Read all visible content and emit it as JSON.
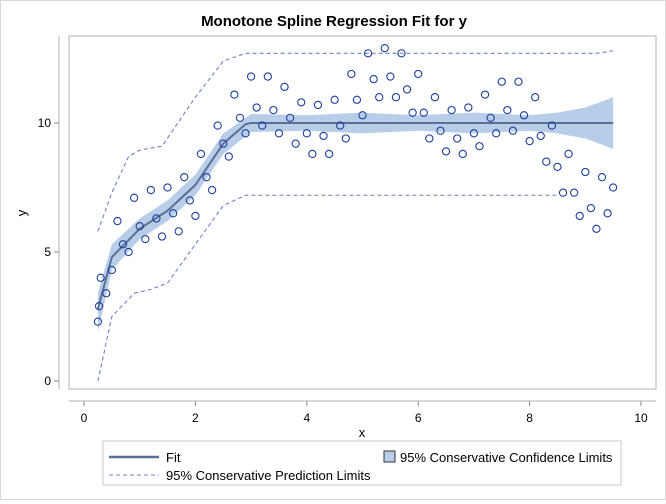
{
  "chart_data": {
    "type": "scatter",
    "title": "Monotone Spline Regression Fit for y",
    "xlabel": "x",
    "ylabel": "y",
    "xlim": [
      -0.3,
      10.3
    ],
    "ylim": [
      -0.3,
      13.3
    ],
    "xticks": [
      0,
      2,
      4,
      6,
      8,
      10
    ],
    "yticks": [
      0,
      5,
      10
    ],
    "grid": false,
    "legend_placement": "bottom",
    "colors": {
      "points": "#1f3f9f",
      "fit": "#5a6f94",
      "confidence": "#b8cde8",
      "prediction": "#6d82c6"
    },
    "points": {
      "x": [
        0.25,
        0.27,
        0.3,
        0.4,
        0.5,
        0.6,
        0.7,
        0.8,
        0.9,
        1.0,
        1.1,
        1.2,
        1.3,
        1.4,
        1.5,
        1.6,
        1.7,
        1.8,
        1.9,
        2.0,
        2.1,
        2.2,
        2.3,
        2.4,
        2.5,
        2.6,
        2.7,
        2.8,
        2.9,
        3.0,
        3.1,
        3.2,
        3.3,
        3.4,
        3.5,
        3.6,
        3.7,
        3.8,
        3.9,
        4.0,
        4.1,
        4.2,
        4.3,
        4.4,
        4.5,
        4.6,
        4.7,
        4.8,
        4.9,
        5.0,
        5.1,
        5.2,
        5.3,
        5.4,
        5.5,
        5.6,
        5.7,
        5.8,
        5.9,
        6.0,
        6.1,
        6.2,
        6.3,
        6.4,
        6.5,
        6.6,
        6.7,
        6.8,
        6.9,
        7.0,
        7.1,
        7.2,
        7.3,
        7.4,
        7.5,
        7.6,
        7.7,
        7.8,
        7.9,
        8.0,
        8.1,
        8.2,
        8.3,
        8.4,
        8.5,
        8.6,
        8.7,
        8.8,
        8.9,
        9.0,
        9.1,
        9.2,
        9.3,
        9.4,
        9.5
      ],
      "y": [
        2.3,
        2.9,
        4.0,
        3.4,
        4.3,
        6.2,
        5.3,
        5.0,
        7.1,
        6.0,
        5.5,
        7.4,
        6.3,
        5.6,
        7.5,
        6.5,
        5.8,
        7.9,
        7.0,
        6.4,
        8.8,
        7.9,
        7.4,
        9.9,
        9.2,
        8.7,
        11.1,
        10.2,
        9.6,
        11.8,
        10.6,
        9.9,
        11.8,
        10.5,
        9.6,
        11.4,
        10.2,
        9.2,
        10.8,
        9.6,
        8.8,
        10.7,
        9.5,
        8.8,
        10.9,
        9.9,
        9.4,
        11.9,
        10.9,
        10.3,
        12.7,
        11.7,
        11.0,
        12.9,
        11.8,
        11.0,
        12.7,
        11.3,
        10.4,
        11.9,
        10.4,
        9.4,
        11.0,
        9.7,
        8.9,
        10.5,
        9.4,
        8.8,
        10.6,
        9.6,
        9.1,
        11.1,
        10.2,
        9.6,
        11.6,
        10.5,
        9.7,
        11.6,
        10.3,
        9.3,
        11.0,
        9.5,
        8.5,
        9.9,
        8.3,
        7.3,
        8.8,
        7.3,
        6.4,
        8.1,
        6.7,
        5.9,
        7.9,
        6.5,
        7.5
      ]
    },
    "series": [
      {
        "name": "Fit",
        "x": [
          0.25,
          0.5,
          1.0,
          1.5,
          2.0,
          2.5,
          2.9,
          3.0,
          9.5
        ],
        "y": [
          2.8,
          4.8,
          5.9,
          6.6,
          7.6,
          9.2,
          9.95,
          10,
          10
        ]
      },
      {
        "name": "95% Conservative Confidence Limits",
        "x": [
          0.25,
          0.5,
          1.0,
          1.5,
          2.0,
          2.5,
          3.0,
          4.0,
          5.0,
          6.0,
          7.0,
          8.0,
          8.5,
          9.0,
          9.5
        ],
        "lower": [
          1.9,
          4.3,
          5.5,
          6.2,
          7.2,
          8.8,
          9.65,
          9.7,
          9.6,
          9.7,
          9.6,
          9.7,
          9.6,
          9.4,
          9.0
        ],
        "upper": [
          3.4,
          5.3,
          6.3,
          7.0,
          8.0,
          9.6,
          10.35,
          10.3,
          10.4,
          10.3,
          10.4,
          10.3,
          10.4,
          10.6,
          11.0
        ]
      },
      {
        "name": "95% Conservative Prediction Limits",
        "upper": {
          "x": [
            0.25,
            0.5,
            0.8,
            1.0,
            1.4,
            2.0,
            2.5,
            2.9,
            9.2,
            9.5
          ],
          "y": [
            5.8,
            7.3,
            8.7,
            8.95,
            9.1,
            11.0,
            12.4,
            12.7,
            12.7,
            12.8
          ]
        },
        "lower": {
          "x": [
            0.25,
            0.5,
            0.9,
            1.2,
            1.5,
            2.0,
            2.5,
            2.9,
            8.5
          ],
          "y": [
            0.0,
            2.5,
            3.4,
            3.55,
            3.8,
            5.3,
            6.8,
            7.2,
            7.2
          ]
        }
      }
    ],
    "legend": {
      "fit": "Fit",
      "confidence": "95% Conservative Confidence Limits",
      "prediction": "95% Conservative Prediction Limits"
    }
  }
}
